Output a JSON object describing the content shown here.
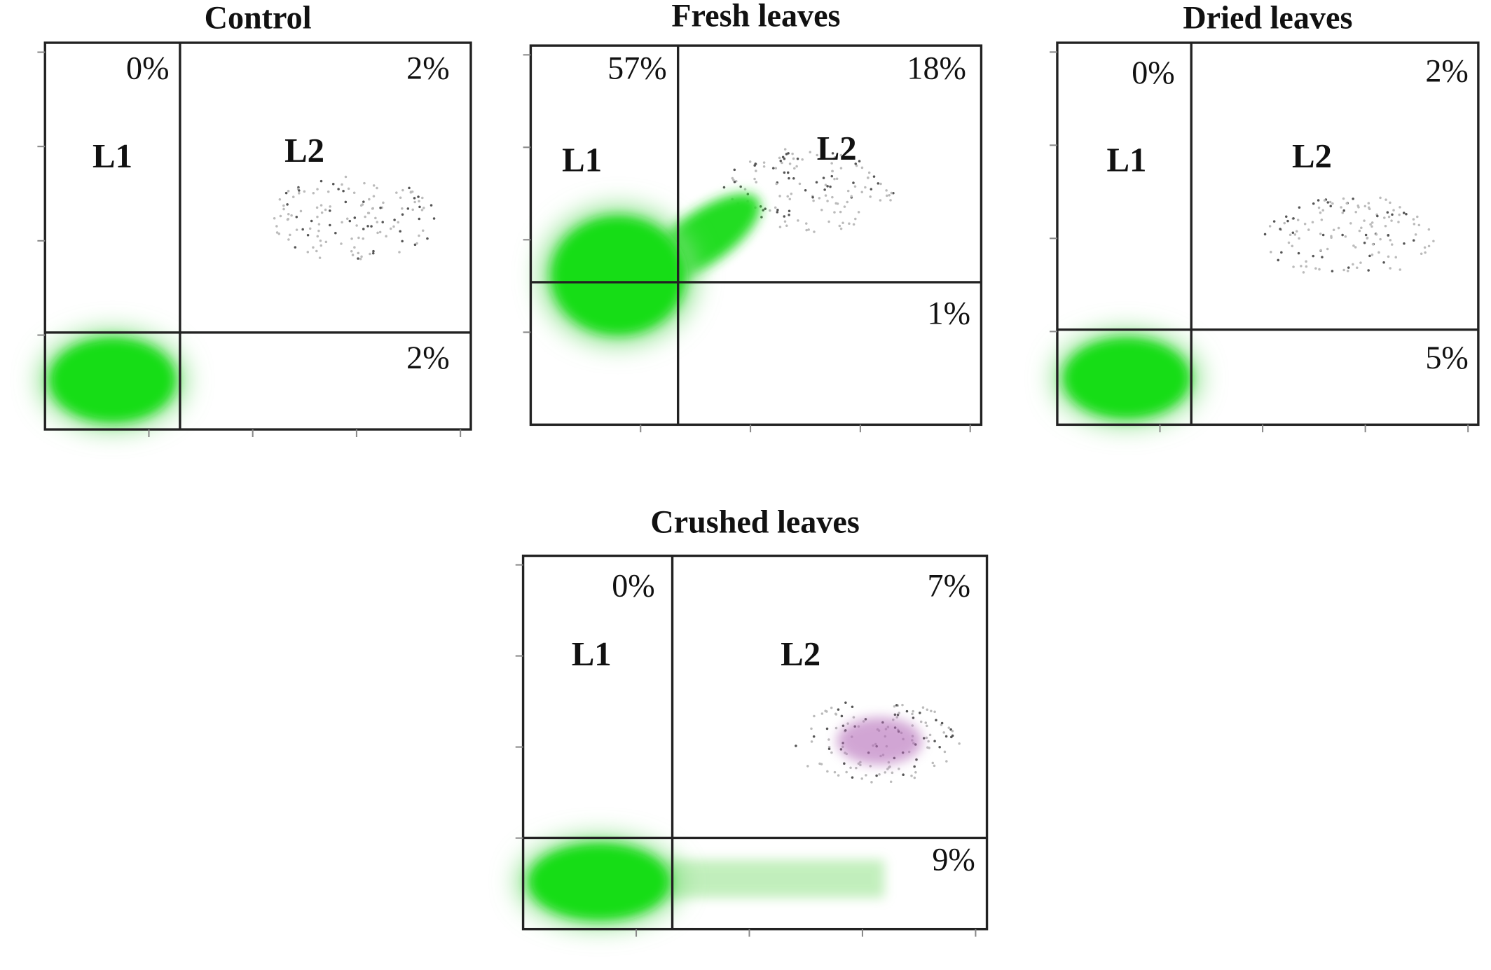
{
  "panels": [
    {
      "title": "Control",
      "labels": [
        "L1",
        "L2"
      ],
      "quadrants": {
        "upper_left": "0%",
        "upper_right": "2%",
        "lower_right": "2%"
      }
    },
    {
      "title": "Fresh leaves",
      "labels": [
        "L1",
        "L2"
      ],
      "quadrants": {
        "upper_left": "57%",
        "upper_right": "18%",
        "lower_right": "1%"
      }
    },
    {
      "title": "Dried leaves",
      "labels": [
        "L1",
        "L2"
      ],
      "quadrants": {
        "upper_left": "0%",
        "upper_right": "2%",
        "lower_right": "5%"
      }
    },
    {
      "title": "Crushed leaves",
      "labels": [
        "L1",
        "L2"
      ],
      "quadrants": {
        "upper_left": "0%",
        "upper_right": "7%",
        "lower_right": "9%"
      }
    }
  ]
}
